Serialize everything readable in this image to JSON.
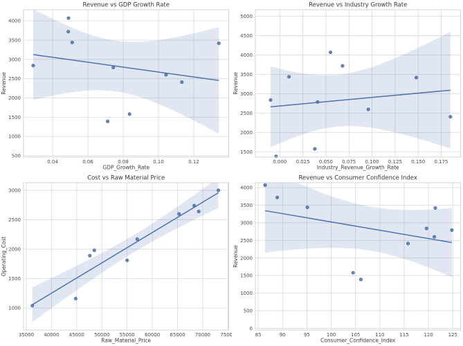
{
  "figure": {
    "background": "#ffffff",
    "point_color": "#4c72b0",
    "point_edge_color": "#3b5d97",
    "line_color": "#4c72b0",
    "band_color": "#4c72b0",
    "band_opacity": 0.17,
    "grid_color": "#d9d9d9",
    "spine_color": "#d4d4d4",
    "title_color": "#333333",
    "tick_color": "#4a4a4a",
    "label_color": "#3d3d3d"
  },
  "chart_data": [
    {
      "type": "scatter",
      "title": "Revenue vs GDP Growth Rate",
      "xlabel": "GDP_Growth_Rate",
      "ylabel": "Revenue",
      "regression_line": true,
      "confidence_band": true,
      "grid": true,
      "legend": false,
      "x": [
        0.029,
        0.049,
        0.0489,
        0.0511,
        0.0712,
        0.0744,
        0.0836,
        0.1043,
        0.1132,
        0.1342
      ],
      "y": [
        2840,
        4070,
        3720,
        3440,
        1390,
        2790,
        1580,
        2600,
        2410,
        3420
      ],
      "xlim": [
        0.0235,
        0.1398
      ],
      "ylim": [
        465,
        4290
      ],
      "xticks": [
        0.04,
        0.06,
        0.08,
        0.1,
        0.12
      ],
      "xtick_labels": [
        "0.04",
        "0.06",
        "0.08",
        "0.10",
        "0.12"
      ],
      "yticks": [
        500,
        1000,
        1500,
        2000,
        2500,
        3000,
        3500,
        4000
      ],
      "ytick_labels": [
        "500",
        "1000",
        "1500",
        "2000",
        "2500",
        "3000",
        "3500",
        "4000"
      ]
    },
    {
      "type": "scatter",
      "title": "Revenue vs Industry Growth Rate",
      "xlabel": "Industry_Revenue_Growth_Rate",
      "ylabel": "Revenue",
      "regression_line": true,
      "confidence_band": true,
      "grid": true,
      "legend": false,
      "x": [
        -0.01,
        -0.004,
        0.01,
        0.038,
        0.041,
        0.055,
        0.068,
        0.096,
        0.148,
        0.185
      ],
      "y": [
        2840,
        1390,
        3440,
        1580,
        2790,
        4070,
        3720,
        2600,
        3420,
        2410
      ],
      "xlim": [
        -0.0265,
        0.196
      ],
      "ylim": [
        1370,
        5170
      ],
      "xticks": [
        0.0,
        0.025,
        0.05,
        0.075,
        0.1,
        0.125,
        0.15,
        0.175
      ],
      "xtick_labels": [
        "0.000",
        "0.025",
        "0.050",
        "0.075",
        "0.100",
        "0.125",
        "0.150",
        "0.175"
      ],
      "yticks": [
        1500,
        2000,
        2500,
        3000,
        3500,
        4000,
        4500,
        5000
      ],
      "ytick_labels": [
        "1500",
        "2000",
        "2500",
        "3000",
        "3500",
        "4000",
        "4500",
        "5000"
      ]
    },
    {
      "type": "scatter",
      "title": "Cost vs Raw Material Price",
      "xlabel": "Raw_Material_Price",
      "ylabel": "Operating_Cost",
      "regression_line": true,
      "confidence_band": true,
      "grid": true,
      "legend": false,
      "x": [
        36200,
        44800,
        47600,
        48500,
        55000,
        57000,
        65300,
        68300,
        69200,
        73100
      ],
      "y": [
        1040,
        1160,
        1890,
        1980,
        1810,
        2170,
        2600,
        2740,
        2640,
        3000
      ],
      "xlim": [
        34450,
        75150
      ],
      "ylim": [
        625,
        3130
      ],
      "xticks": [
        35000,
        40000,
        45000,
        50000,
        55000,
        60000,
        65000,
        70000,
        75000
      ],
      "xtick_labels": [
        "35000",
        "40000",
        "45000",
        "50000",
        "55000",
        "60000",
        "65000",
        "70000",
        "75000"
      ],
      "yticks": [
        1000,
        1500,
        2000,
        2500,
        3000
      ],
      "ytick_labels": [
        "1000",
        "1500",
        "2000",
        "2500",
        "3000"
      ]
    },
    {
      "type": "scatter",
      "title": "Revenue vs Consumer Confidence Index",
      "xlabel": "Consumer_Confidence_Index",
      "ylabel": "Revenue",
      "regression_line": true,
      "confidence_band": true,
      "grid": true,
      "legend": false,
      "x": [
        86.4,
        88.9,
        95.1,
        104.5,
        106.1,
        115.8,
        119.6,
        121.2,
        121.4,
        124.8
      ],
      "y": [
        4070,
        3720,
        3440,
        1580,
        1390,
        2410,
        2840,
        2600,
        3420,
        2790
      ],
      "xlim": [
        84.4,
        126.6
      ],
      "ylim": [
        -50,
        4140
      ],
      "xticks": [
        85,
        90,
        95,
        100,
        105,
        110,
        115,
        120,
        125
      ],
      "xtick_labels": [
        "85",
        "90",
        "95",
        "100",
        "105",
        "110",
        "115",
        "120",
        "125"
      ],
      "yticks": [
        0,
        500,
        1000,
        1500,
        2000,
        2500,
        3000,
        3500,
        4000
      ],
      "ytick_labels": [
        "0",
        "500",
        "1000",
        "1500",
        "2000",
        "2500",
        "3000",
        "3500",
        "4000"
      ]
    }
  ]
}
